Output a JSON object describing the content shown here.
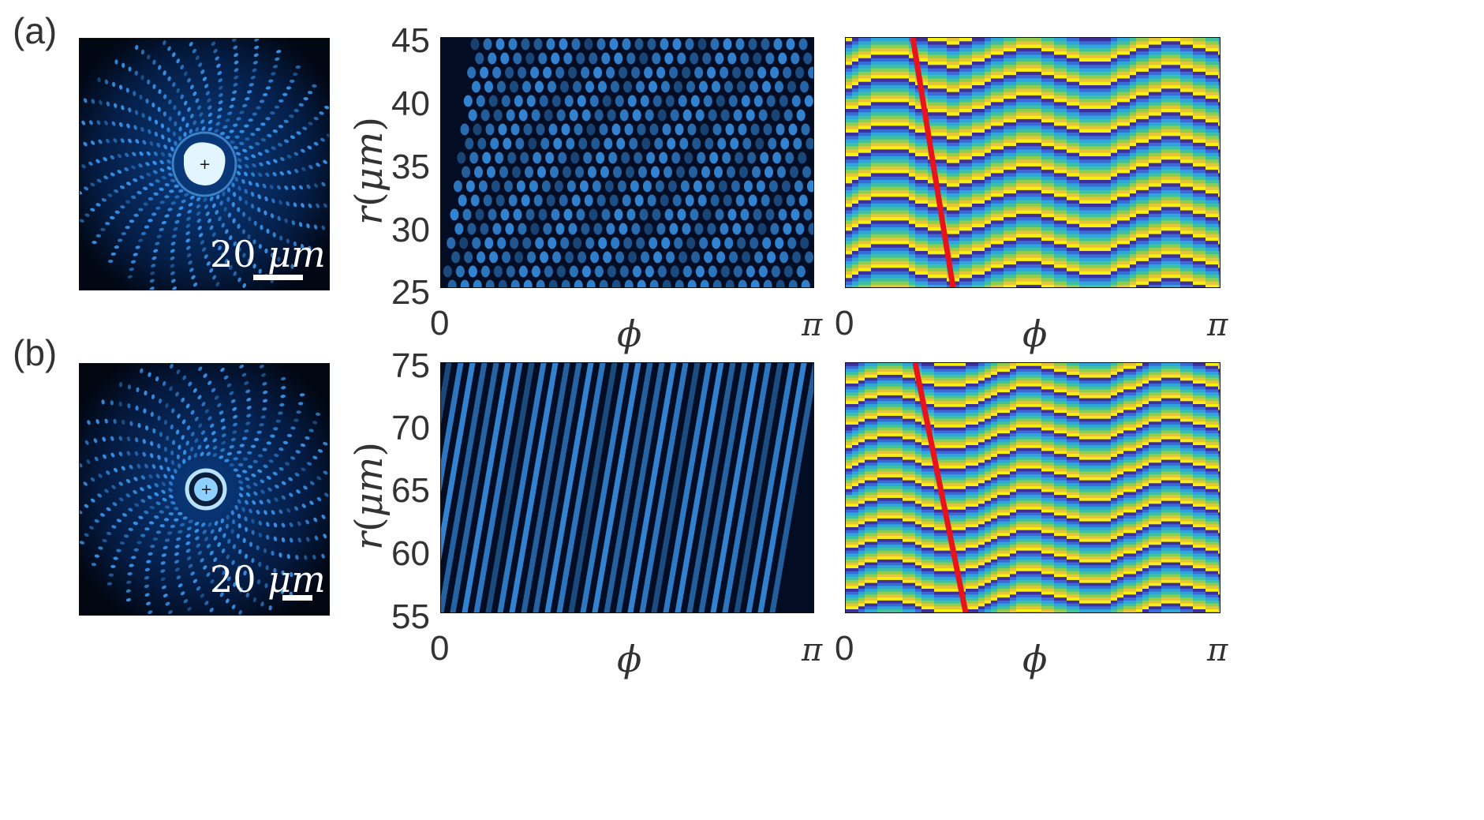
{
  "figure": {
    "rows": [
      {
        "label": "(a)",
        "scale_bar_text": "20",
        "scale_bar_unit": "μm",
        "y_axis": {
          "var": "r",
          "unit": "μm",
          "ticks": [
            "45",
            "40",
            "35",
            "30",
            "25"
          ]
        },
        "x_axis": {
          "var": "ϕ",
          "ticks": [
            "0",
            "π"
          ]
        },
        "phase_x_ticks": [
          "0",
          "π"
        ],
        "phase_x_var": "ϕ"
      },
      {
        "label": "(b)",
        "scale_bar_text": "20",
        "scale_bar_unit": "μm",
        "y_axis": {
          "var": "r",
          "unit": "μm",
          "ticks": [
            "75",
            "70",
            "65",
            "60",
            "55"
          ]
        },
        "x_axis": {
          "var": "ϕ",
          "ticks": [
            "0",
            "π"
          ]
        },
        "phase_x_ticks": [
          "0",
          "π"
        ],
        "phase_x_var": "ϕ"
      }
    ],
    "colors": {
      "intensity_dark": "#000814",
      "intensity_mid": "#0a3a7a",
      "intensity_bright": "#3fa2ff",
      "phase_line": "#e8141b",
      "phase_palette": [
        "#3e2f9a",
        "#3a6ad6",
        "#2fa6d9",
        "#3fc1a1",
        "#8fcd4f",
        "#e6c43a",
        "#f8f00f"
      ]
    }
  }
}
